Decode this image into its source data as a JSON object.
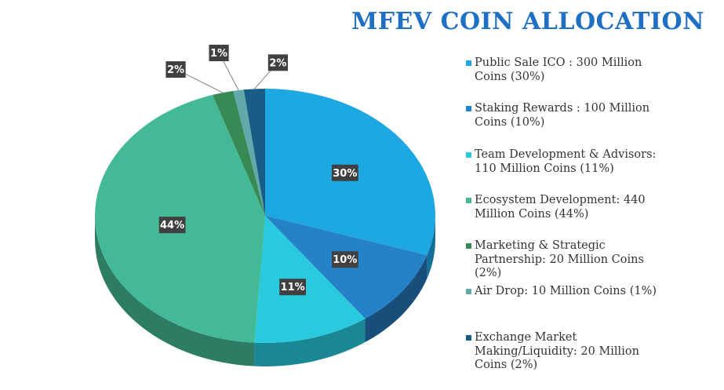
{
  "title": "MFEV COIN ALLOCATION",
  "chart_data": {
    "type": "pie",
    "title": "MFEV COIN ALLOCATION",
    "slices": [
      {
        "label": "Public Sale ICO : 300 Million Coins (30%)",
        "value": 30,
        "display": "30%",
        "color": "#1ea8e2",
        "side_color": "#156f98"
      },
      {
        "label": "Staking Rewards : 100 Million Coins (10%)",
        "value": 10,
        "display": "10%",
        "color": "#2582c8",
        "side_color": "#174f7a"
      },
      {
        "label": "Team Development & Advisors: 110 Million Coins (11%)",
        "value": 11,
        "display": "11%",
        "color": "#29cadd",
        "side_color": "#1a8794"
      },
      {
        "label": "Ecosystem Development: 440 Million Coins (44%)",
        "value": 44,
        "display": "44%",
        "color": "#44b995",
        "side_color": "#2d7d64"
      },
      {
        "label": "Marketing & Strategic Partnership: 20 Million Coins (2%)",
        "value": 2,
        "display": "2%",
        "color": "#388a55",
        "side_color": "#245a38"
      },
      {
        "label": "Air Drop: 10 Million Coins (1%)",
        "value": 1,
        "display": "1%",
        "color": "#62a8aa",
        "side_color": "#416f70"
      },
      {
        "label": "Exchange Market Making/Liquidity: 20 Million Coins (2%)",
        "value": 2,
        "display": "2%",
        "color": "#175d86",
        "side_color": "#0f3c57"
      }
    ],
    "legend_position": "right"
  },
  "legend": [
    {
      "lines": [
        "Public Sale ICO : 300 Million",
        "Coins (30%)"
      ],
      "color": "#1ea8e2"
    },
    {
      "lines": [
        "Staking Rewards : 100 Million",
        "Coins (10%)"
      ],
      "color": "#2582c8"
    },
    {
      "lines": [
        "Team Development & Advisors:",
        "110 Million Coins (11%)"
      ],
      "color": "#29cadd"
    },
    {
      "lines": [
        "Ecosystem Development: 440",
        "Million Coins (44%)"
      ],
      "color": "#44b995"
    },
    {
      "lines": [
        "Marketing & Strategic",
        "Partnership: 20 Million Coins",
        "(2%)"
      ],
      "color": "#388a55"
    },
    {
      "lines": [
        "Air Drop: 10 Million Coins (1%)"
      ],
      "color": "#62a8aa"
    },
    {
      "lines": [
        "Exchange Market",
        "Making/Liquidity: 20 Million",
        "Coins (2%)"
      ],
      "color": "#175d86"
    }
  ]
}
